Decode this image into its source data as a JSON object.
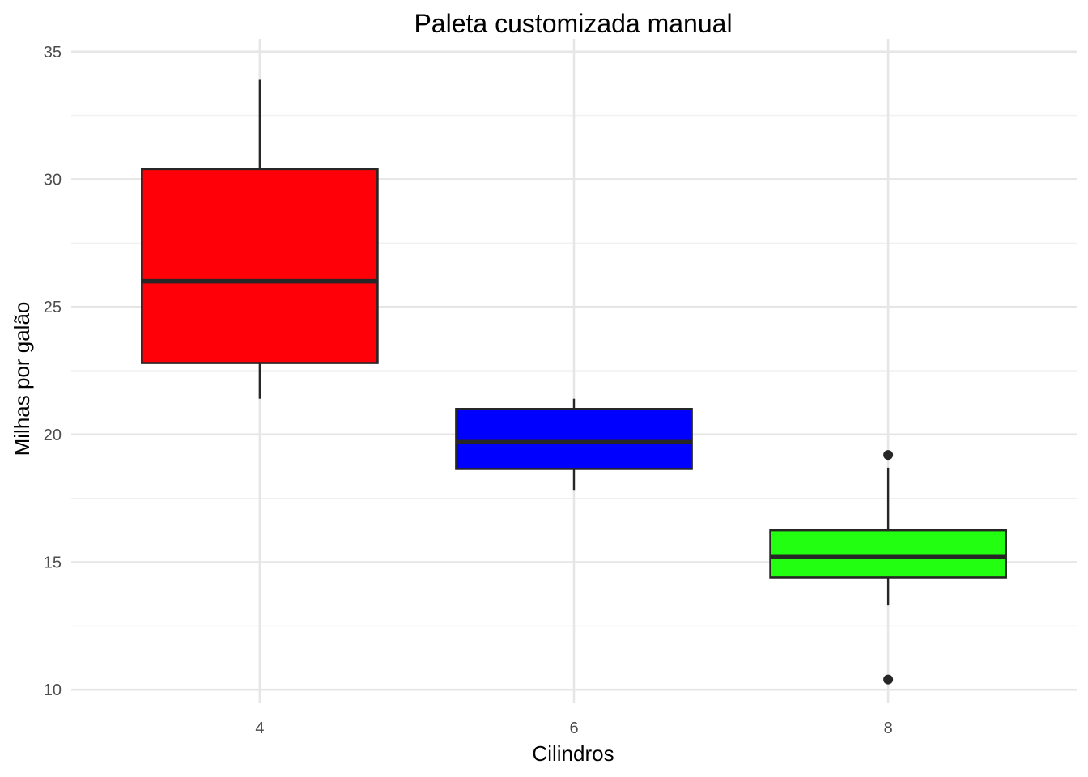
{
  "chart_data": {
    "type": "boxplot",
    "title": "Paleta customizada manual",
    "xlabel": "Cilindros",
    "ylabel": "Milhas por galão",
    "categories": [
      "4",
      "6",
      "8"
    ],
    "ylim": [
      9.5,
      35.5
    ],
    "y_ticks": [
      10,
      15,
      20,
      25,
      30,
      35
    ],
    "grid": true,
    "legend": "none",
    "boxes": [
      {
        "category": "4",
        "fill": "#FF0008",
        "whisker_low": 21.4,
        "q1": 22.8,
        "median": 26.0,
        "q3": 30.4,
        "whisker_high": 33.9,
        "outliers": []
      },
      {
        "category": "6",
        "fill": "#0000FF",
        "whisker_low": 17.8,
        "q1": 18.65,
        "median": 19.7,
        "q3": 21.0,
        "whisker_high": 21.4,
        "outliers": []
      },
      {
        "category": "8",
        "fill": "#22FF11",
        "whisker_low": 13.3,
        "q1": 14.4,
        "median": 15.2,
        "q3": 16.25,
        "whisker_high": 18.7,
        "outliers": [
          10.4,
          19.2
        ]
      }
    ],
    "colors": {
      "grid_major": "#e6e6e6",
      "grid_minor": "#f0f0f0",
      "box_outline": "#262626",
      "tick_text": "#4d4d4d"
    }
  }
}
